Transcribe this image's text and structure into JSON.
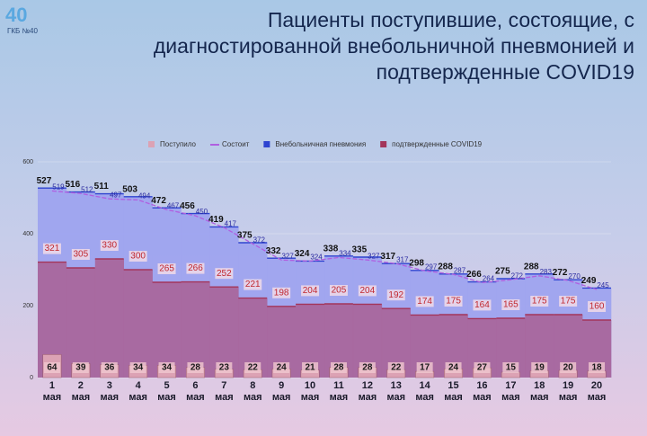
{
  "chart_data": {
    "type": "combo",
    "title": "Пациенты поступившие, состоящие, с диагностированной внебольничной пневмонией и подтвержденные COVID19",
    "logo": {
      "mark": "40",
      "name": "ГКБ №40"
    },
    "categories": [
      "1 мая",
      "2 мая",
      "3 мая",
      "4 мая",
      "5 мая",
      "6 мая",
      "7 мая",
      "8 мая",
      "9 мая",
      "10 мая",
      "11 мая",
      "12 мая",
      "13 мая",
      "14 мая",
      "15 мая",
      "16 мая",
      "17 мая",
      "18 мая",
      "19 мая",
      "20 мая"
    ],
    "ylim": [
      0,
      600
    ],
    "yticks": [
      0,
      200,
      400,
      600
    ],
    "series": [
      {
        "name": "Поступило",
        "kind": "bar",
        "color": "#dca2b4",
        "values": [
          64,
          39,
          36,
          34,
          34,
          28,
          23,
          22,
          24,
          21,
          28,
          28,
          22,
          17,
          24,
          27,
          15,
          19,
          20,
          18
        ]
      },
      {
        "name": "Состоит",
        "kind": "line",
        "color": "#b05fe0",
        "values": [
          519,
          512,
          497,
          494,
          467,
          450,
          417,
          372,
          327,
          324,
          334,
          327,
          317,
          297,
          287,
          264,
          272,
          283,
          270,
          245
        ]
      },
      {
        "name": "Внебольничная пневмония",
        "kind": "step-area",
        "color": "#2e44d0",
        "fill": "#9ea3ef",
        "values": [
          527,
          516,
          511,
          503,
          472,
          456,
          419,
          375,
          332,
          324,
          338,
          335,
          317,
          298,
          288,
          266,
          275,
          288,
          272,
          249
        ]
      },
      {
        "name": "подтвержденные COVID19",
        "kind": "step-area",
        "color": "#a3355a",
        "fill": "#a9669c",
        "values": [
          321,
          305,
          330,
          300,
          265,
          266,
          252,
          221,
          198,
          204,
          205,
          204,
          192,
          174,
          175,
          164,
          165,
          175,
          175,
          160
        ]
      }
    ]
  }
}
